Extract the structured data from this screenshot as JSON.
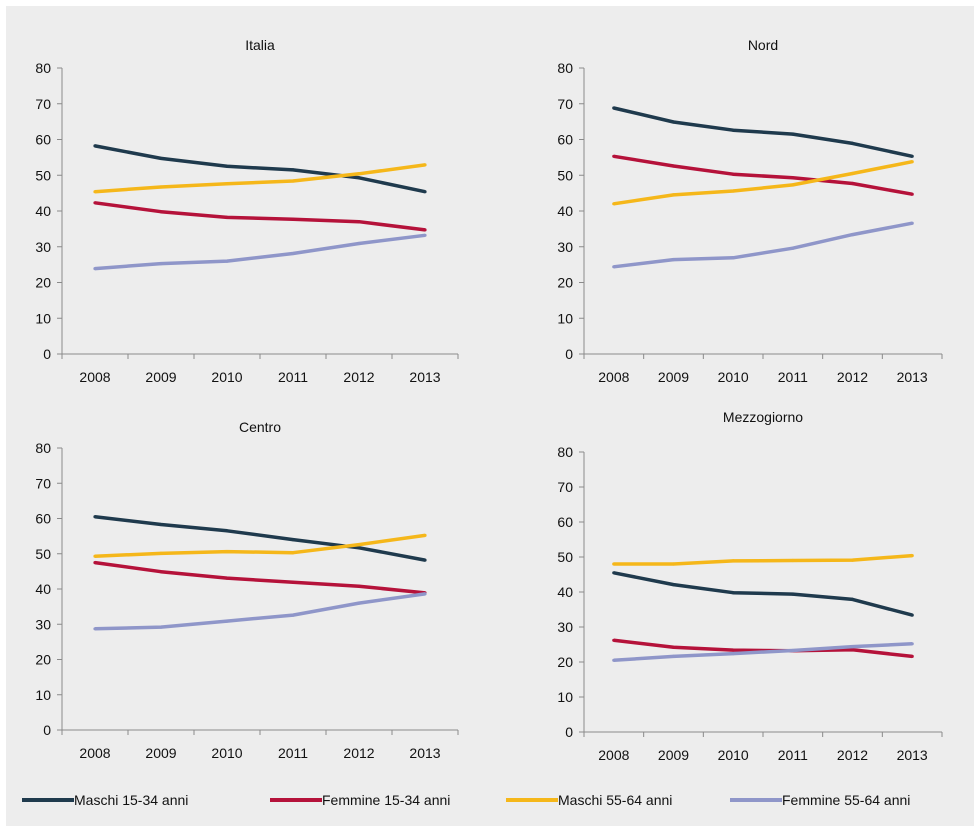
{
  "chart_data": [
    {
      "type": "line",
      "title": "Italia",
      "categories": [
        "2008",
        "2009",
        "2010",
        "2011",
        "2012",
        "2013"
      ],
      "ylim": [
        0,
        80
      ],
      "yticks": [
        0,
        10,
        20,
        30,
        40,
        50,
        60,
        70,
        80
      ],
      "series": [
        {
          "name": "Maschi 15-34 anni",
          "values": [
            58.2,
            54.7,
            52.5,
            51.5,
            49.3,
            45.4
          ]
        },
        {
          "name": "Femmine 15-34 anni",
          "values": [
            42.3,
            39.8,
            38.2,
            37.7,
            37.0,
            34.7
          ]
        },
        {
          "name": "Maschi 55-64 anni",
          "values": [
            45.4,
            46.7,
            47.6,
            48.4,
            50.4,
            52.9
          ]
        },
        {
          "name": "Femmine 55-64 anni",
          "values": [
            23.9,
            25.3,
            26.0,
            28.1,
            30.9,
            33.2
          ]
        }
      ]
    },
    {
      "type": "line",
      "title": "Nord",
      "categories": [
        "2008",
        "2009",
        "2010",
        "2011",
        "2012",
        "2013"
      ],
      "ylim": [
        0,
        80
      ],
      "yticks": [
        0,
        10,
        20,
        30,
        40,
        50,
        60,
        70,
        80
      ],
      "series": [
        {
          "name": "Maschi 15-34 anni",
          "values": [
            68.8,
            64.9,
            62.6,
            61.5,
            58.9,
            55.3
          ]
        },
        {
          "name": "Femmine 15-34 anni",
          "values": [
            55.3,
            52.6,
            50.3,
            49.3,
            47.7,
            44.7
          ]
        },
        {
          "name": "Maschi 55-64 anni",
          "values": [
            42.0,
            44.5,
            45.6,
            47.3,
            50.5,
            53.8
          ]
        },
        {
          "name": "Femmine 55-64 anni",
          "values": [
            24.4,
            26.4,
            26.9,
            29.6,
            33.4,
            36.6
          ]
        }
      ]
    },
    {
      "type": "line",
      "title": "Centro",
      "categories": [
        "2008",
        "2009",
        "2010",
        "2011",
        "2012",
        "2013"
      ],
      "ylim": [
        0,
        80
      ],
      "yticks": [
        0,
        10,
        20,
        30,
        40,
        50,
        60,
        70,
        80
      ],
      "series": [
        {
          "name": "Maschi 15-34 anni",
          "values": [
            60.5,
            58.3,
            56.5,
            54.0,
            51.7,
            48.2
          ]
        },
        {
          "name": "Femmine 15-34 anni",
          "values": [
            47.5,
            44.9,
            43.1,
            41.9,
            40.8,
            38.9
          ]
        },
        {
          "name": "Maschi 55-64 anni",
          "values": [
            49.3,
            50.1,
            50.6,
            50.3,
            52.6,
            55.2
          ]
        },
        {
          "name": "Femmine 55-64 anni",
          "values": [
            28.7,
            29.2,
            30.9,
            32.6,
            36.0,
            38.6
          ]
        }
      ]
    },
    {
      "type": "line",
      "title": "Mezzogiorno",
      "categories": [
        "2008",
        "2009",
        "2010",
        "2011",
        "2012",
        "2013"
      ],
      "ylim": [
        0,
        80
      ],
      "yticks": [
        0,
        10,
        20,
        30,
        40,
        50,
        60,
        70,
        80
      ],
      "series": [
        {
          "name": "Maschi 15-34 anni",
          "values": [
            45.5,
            42.1,
            39.8,
            39.4,
            37.9,
            33.4
          ]
        },
        {
          "name": "Femmine 15-34 anni",
          "values": [
            26.2,
            24.2,
            23.4,
            23.2,
            23.5,
            21.6
          ]
        },
        {
          "name": "Maschi 55-64 anni",
          "values": [
            48.0,
            48.0,
            48.9,
            49.0,
            49.1,
            50.4
          ]
        },
        {
          "name": "Femmine 55-64 anni",
          "values": [
            20.5,
            21.6,
            22.4,
            23.3,
            24.4,
            25.2
          ]
        }
      ]
    }
  ],
  "legend": [
    {
      "label": "Maschi 15-34 anni",
      "color": "#1f3a4d"
    },
    {
      "label": "Femmine 15-34 anni",
      "color": "#b5123a"
    },
    {
      "label": "Maschi 55-64 anni",
      "color": "#f5b71a"
    },
    {
      "label": "Femmine 55-64 anni",
      "color": "#8f96c9"
    }
  ]
}
